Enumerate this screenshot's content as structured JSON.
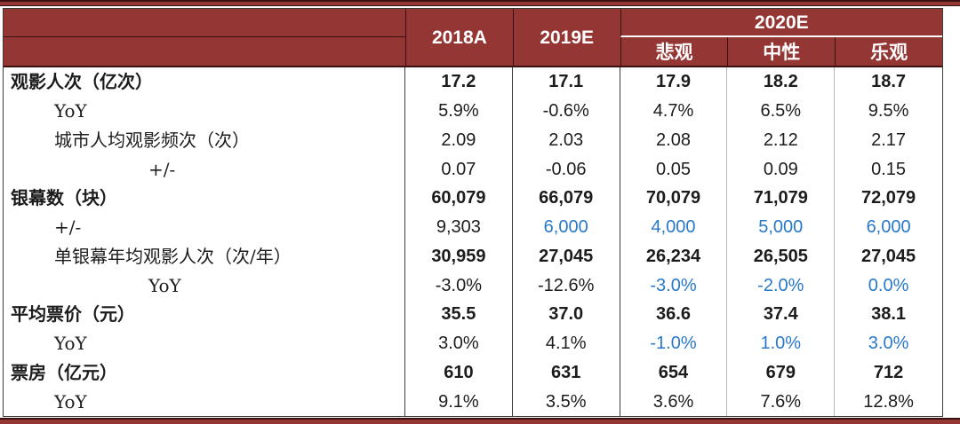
{
  "colors": {
    "header_red": "#943634",
    "highlight_blue": "#2878C9"
  },
  "chart_data": {
    "type": "table",
    "header": {
      "years": [
        "2018A",
        "2019E"
      ],
      "group_2020": "2020E",
      "scenarios": [
        "悲观",
        "中性",
        "乐观"
      ]
    },
    "columns": [
      "2018A",
      "2019E",
      "2020E悲观",
      "2020E中性",
      "2020E乐观"
    ],
    "rows": [
      {
        "label": "观影人次（亿次）",
        "indent": 0,
        "label_bold": true,
        "value_bold": true,
        "values": [
          "17.2",
          "17.1",
          "17.9",
          "18.2",
          "18.7"
        ],
        "blue": [
          false,
          false,
          false,
          false,
          false
        ]
      },
      {
        "label": "YoY",
        "indent": 1,
        "label_bold": false,
        "value_bold": false,
        "values": [
          "5.9%",
          "-0.6%",
          "4.7%",
          "6.5%",
          "9.5%"
        ],
        "blue": [
          false,
          false,
          false,
          false,
          false
        ]
      },
      {
        "label": "城市人均观影频次（次）",
        "indent": 1,
        "label_bold": false,
        "value_bold": false,
        "values": [
          "2.09",
          "2.03",
          "2.08",
          "2.12",
          "2.17"
        ],
        "blue": [
          false,
          false,
          false,
          false,
          false
        ]
      },
      {
        "label": "+/-",
        "indent": 2,
        "label_bold": false,
        "value_bold": false,
        "values": [
          "0.07",
          "-0.06",
          "0.05",
          "0.09",
          "0.15"
        ],
        "blue": [
          false,
          false,
          false,
          false,
          false
        ]
      },
      {
        "label": "银幕数（块）",
        "indent": 0,
        "label_bold": true,
        "value_bold": true,
        "values": [
          "60,079",
          "66,079",
          "70,079",
          "71,079",
          "72,079"
        ],
        "blue": [
          false,
          false,
          false,
          false,
          false
        ]
      },
      {
        "label": "+/-",
        "indent": 1,
        "label_bold": false,
        "value_bold": false,
        "values": [
          "9,303",
          "6,000",
          "4,000",
          "5,000",
          "6,000"
        ],
        "blue": [
          false,
          true,
          true,
          true,
          true
        ]
      },
      {
        "label": "单银幕年均观影人次（次/年）",
        "indent": 1,
        "label_bold": false,
        "value_bold": true,
        "values": [
          "30,959",
          "27,045",
          "26,234",
          "26,505",
          "27,045"
        ],
        "blue": [
          false,
          false,
          false,
          false,
          false
        ]
      },
      {
        "label": "YoY",
        "indent": 2,
        "label_bold": false,
        "value_bold": false,
        "values": [
          "-3.0%",
          "-12.6%",
          "-3.0%",
          "-2.0%",
          "0.0%"
        ],
        "blue": [
          false,
          false,
          true,
          true,
          true
        ]
      },
      {
        "label": "平均票价（元）",
        "indent": 0,
        "label_bold": true,
        "value_bold": true,
        "values": [
          "35.5",
          "37.0",
          "36.6",
          "37.4",
          "38.1"
        ],
        "blue": [
          false,
          false,
          false,
          false,
          false
        ]
      },
      {
        "label": "YoY",
        "indent": 1,
        "label_bold": false,
        "value_bold": false,
        "values": [
          "3.0%",
          "4.1%",
          "-1.0%",
          "1.0%",
          "3.0%"
        ],
        "blue": [
          false,
          false,
          true,
          true,
          true
        ]
      },
      {
        "label": "票房（亿元）",
        "indent": 0,
        "label_bold": true,
        "value_bold": true,
        "values": [
          "610",
          "631",
          "654",
          "679",
          "712"
        ],
        "blue": [
          false,
          false,
          false,
          false,
          false
        ]
      },
      {
        "label": "YoY",
        "indent": 1,
        "label_bold": false,
        "value_bold": false,
        "values": [
          "9.1%",
          "3.5%",
          "3.6%",
          "7.6%",
          "12.8%"
        ],
        "blue": [
          false,
          false,
          false,
          false,
          false
        ]
      }
    ]
  }
}
